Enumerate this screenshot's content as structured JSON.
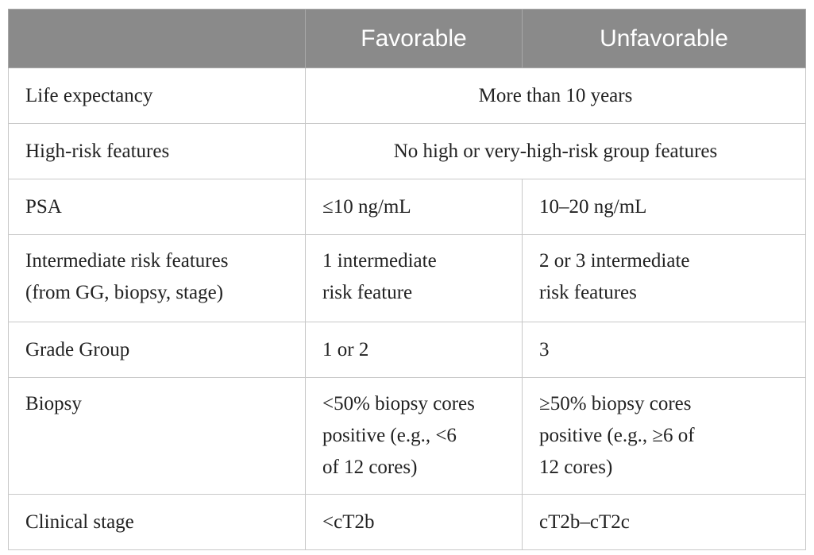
{
  "header": {
    "corner": "",
    "favorable": "Favorable",
    "unfavorable": "Unfavorable"
  },
  "rows": {
    "life_expectancy": {
      "label": "Life expectancy",
      "merged": "More than 10 years"
    },
    "high_risk": {
      "label": "High-risk features",
      "merged": "No high or very-high-risk group features"
    },
    "psa": {
      "label": "PSA",
      "favorable": "≤10 ng/mL",
      "unfavorable": "10–20 ng/mL"
    },
    "intermediate": {
      "label_line1": "Intermediate risk features",
      "label_line2": "(from GG, biopsy, stage)",
      "favorable_line1": "1 intermediate",
      "favorable_line2": "risk feature",
      "unfavorable_line1": "2 or 3 intermediate",
      "unfavorable_line2": "risk features"
    },
    "grade_group": {
      "label": "Grade Group",
      "favorable": "1 or 2",
      "unfavorable": "3"
    },
    "biopsy": {
      "label": "Biopsy",
      "favorable_line1": "<50% biopsy cores",
      "favorable_line2": "positive (e.g., <6",
      "favorable_line3": "of 12 cores)",
      "unfavorable_line1": "≥50% biopsy cores",
      "unfavorable_line2": "positive (e.g., ≥6 of",
      "unfavorable_line3": "12 cores)"
    },
    "clinical_stage": {
      "label": "Clinical stage",
      "favorable": "<cT2b",
      "unfavorable": "cT2b–cT2c"
    }
  }
}
